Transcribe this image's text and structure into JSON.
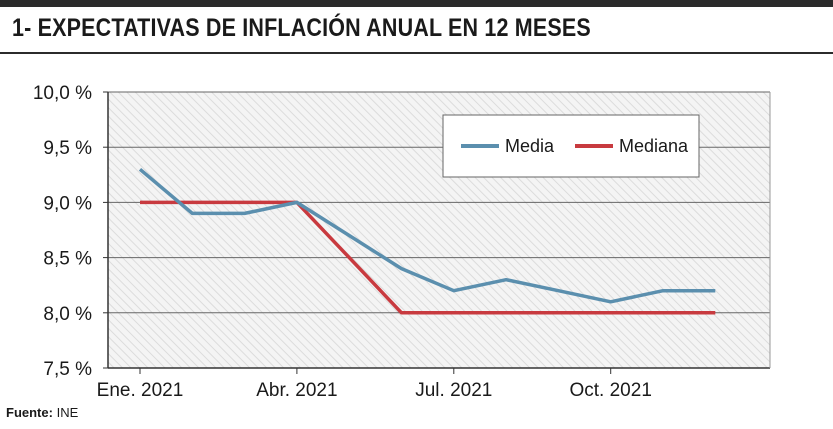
{
  "header": {
    "title": "1- EXPECTATIVAS DE INFLACIÓN ANUAL EN 12 MESES"
  },
  "source": {
    "label": "Fuente:",
    "value": "INE"
  },
  "chart_data": {
    "type": "line",
    "title": "1- EXPECTATIVAS DE INFLACIÓN ANUAL EN 12 MESES",
    "xlabel": "",
    "ylabel": "",
    "x": [
      "Ene. 2021",
      "Feb. 2021",
      "Mar. 2021",
      "Abr. 2021",
      "May. 2021",
      "Jun. 2021",
      "Jul. 2021",
      "Ago. 2021",
      "Sep. 2021",
      "Oct. 2021",
      "Nov. 2021",
      "Dic. 2021"
    ],
    "x_tick_labels": [
      "Ene. 2021",
      "Abr. 2021",
      "Jul. 2021",
      "Oct. 2021"
    ],
    "x_tick_index": [
      0,
      3,
      6,
      9
    ],
    "ylim": [
      7.5,
      10.0
    ],
    "y_ticks": [
      7.5,
      8.0,
      8.5,
      9.0,
      9.5,
      10.0
    ],
    "y_tick_labels": [
      "7,5 %",
      "8,0 %",
      "8,5 %",
      "9,0 %",
      "9,5 %",
      "10,0 %"
    ],
    "grid": true,
    "legend_position": "top-right",
    "series": [
      {
        "name": "Media",
        "color": "#5b8fae",
        "values": [
          9.3,
          8.9,
          8.9,
          9.0,
          8.7,
          8.4,
          8.2,
          8.3,
          8.2,
          8.1,
          8.2,
          8.2
        ]
      },
      {
        "name": "Mediana",
        "color": "#c83a3f",
        "values": [
          9.0,
          9.0,
          9.0,
          9.0,
          8.5,
          8.0,
          8.0,
          8.0,
          8.0,
          8.0,
          8.0,
          8.0
        ]
      }
    ]
  }
}
